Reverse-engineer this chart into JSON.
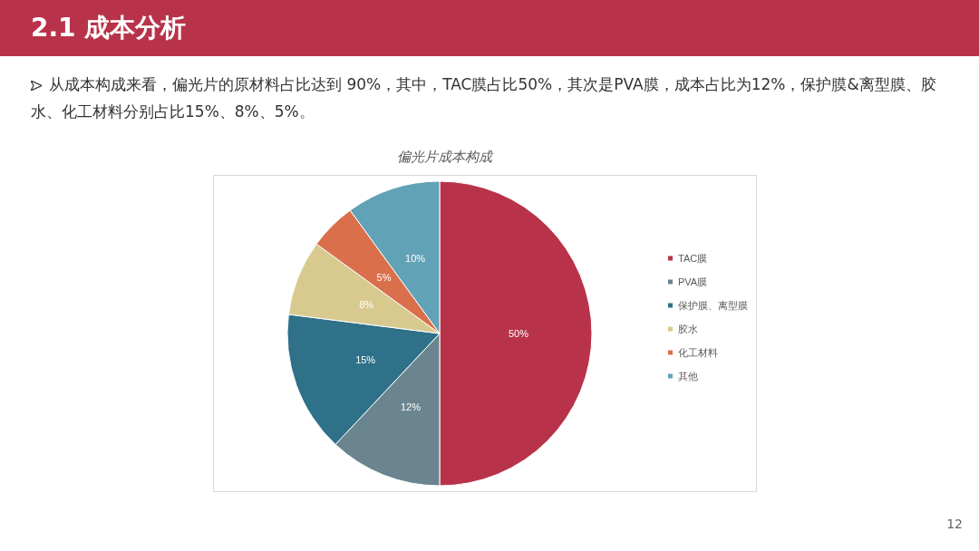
{
  "chart_data": {
    "type": "pie",
    "title": "偏光片成本构成",
    "subtitle": "2.1 成本分析",
    "annotations": [
      "从成本构成来看，偏光片的原材料占比达到 90%，其中，TAC膜占比50%，其次是PVA膜，成本占比为12%，保护膜&离型膜、胶水、化工材料分别占比15%、8%、5%。",
      "12"
    ],
    "categories": [
      "TAC膜",
      "PVA膜",
      "保护膜、离型膜",
      "胶水",
      "化工材料",
      "其他"
    ],
    "values": [
      50,
      12,
      15,
      8,
      5,
      10
    ],
    "colors": [
      "#b8334a",
      "#6a8590",
      "#2e7189",
      "#d8c98f",
      "#d9704b",
      "#62a2b6"
    ],
    "value_labels": [
      "50%",
      "12%",
      "15%",
      "8%",
      "5%",
      "10%"
    ],
    "legend": "right"
  }
}
